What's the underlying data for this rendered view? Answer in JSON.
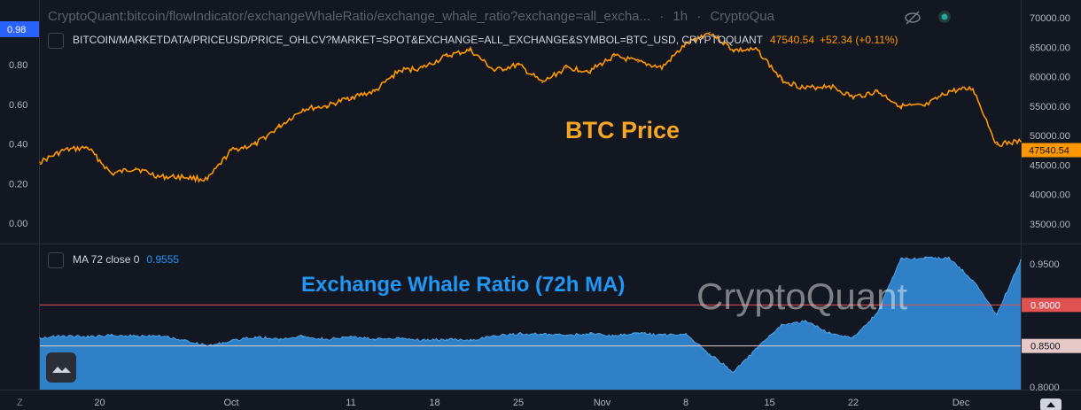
{
  "header": {
    "source_title": "CryptoQuant:bitcoin/flowIndicator/exchangeWhaleRatio/exchange_whale_ratio?exchange=all_excha...",
    "interval": "1h",
    "source_brand": "CryptoQua",
    "eye_icon": "eye-off-icon",
    "dot_icon": "status-dot-icon"
  },
  "price_legend": {
    "symbol": "BITCOIN/MARKETDATA/PRICEUSD/PRICE_OHLCV?MARKET=SPOT&EXCHANGE=ALL_EXCHANGE&SYMBOL=BTC_USD, CRYPTOQUANT",
    "last": "47540.54",
    "change": "+52.34 (+0.11%)"
  },
  "whale_legend": {
    "study": "MA 72 close 0",
    "value": "0.9555"
  },
  "annotations": {
    "price": "BTC Price",
    "whale": "Exchange Whale Ratio (72h MA)",
    "watermark": "CryptoQuant"
  },
  "colors": {
    "background": "#131722",
    "price_line": "#ff9800",
    "whale_fill": "#2f80c6",
    "price_label": "#f5a623",
    "whale_label": "#2196f3",
    "level_090": "#e05252",
    "level_085": "#e8c9c9"
  },
  "chart_data": [
    {
      "type": "line",
      "series": [
        {
          "name": "BITCOIN/MARKETDATA/PRICEUSD/PRICE_OHLCV?MARKET=SPOT&EXCHANGE=ALL_EXCHANGE&SYMBOL=BTC_USD, CRYPTOQUANT",
          "x": [
            "2021-09-15",
            "2021-09-17",
            "2021-09-19",
            "2021-09-21",
            "2021-09-23",
            "2021-09-25",
            "2021-09-27",
            "2021-09-29",
            "2021-10-01",
            "2021-10-03",
            "2021-10-05",
            "2021-10-07",
            "2021-10-09",
            "2021-10-11",
            "2021-10-13",
            "2021-10-15",
            "2021-10-17",
            "2021-10-19",
            "2021-10-21",
            "2021-10-23",
            "2021-10-25",
            "2021-10-27",
            "2021-10-29",
            "2021-10-31",
            "2021-11-02",
            "2021-11-04",
            "2021-11-06",
            "2021-11-08",
            "2021-11-10",
            "2021-11-12",
            "2021-11-14",
            "2021-11-16",
            "2021-11-18",
            "2021-11-20",
            "2021-11-22",
            "2021-11-24",
            "2021-11-26",
            "2021-11-28",
            "2021-11-30",
            "2021-12-02",
            "2021-12-04",
            "2021-12-06"
          ],
          "values": [
            45500,
            47500,
            48000,
            43500,
            44500,
            43000,
            43000,
            42500,
            47500,
            48500,
            51500,
            54500,
            55000,
            56500,
            57500,
            61000,
            61500,
            63500,
            64500,
            61000,
            62000,
            59000,
            61500,
            61000,
            63500,
            62500,
            61500,
            65500,
            67500,
            64500,
            64500,
            59500,
            58000,
            58500,
            56500,
            57500,
            55000,
            55000,
            57500,
            58000,
            48500,
            49000
          ]
        }
      ],
      "annotation": "BTC Price",
      "ylim": [
        30000,
        72000
      ],
      "yticks": [
        "35000.00",
        "40000.00",
        "45000.00",
        "50000.00",
        "55000.00",
        "60000.00",
        "65000.00",
        "70000.00"
      ],
      "left_ticks": [
        "0.00",
        "0.20",
        "0.40",
        "0.60",
        "0.80",
        "0.98"
      ],
      "last_value_label": "47540.54",
      "grid": false
    },
    {
      "type": "area",
      "series": [
        {
          "name": "MA 72 close 0",
          "x": [
            "2021-09-15",
            "2021-09-17",
            "2021-09-19",
            "2021-09-21",
            "2021-09-23",
            "2021-09-25",
            "2021-09-27",
            "2021-09-29",
            "2021-10-01",
            "2021-10-03",
            "2021-10-05",
            "2021-10-07",
            "2021-10-09",
            "2021-10-11",
            "2021-10-13",
            "2021-10-15",
            "2021-10-17",
            "2021-10-19",
            "2021-10-21",
            "2021-10-23",
            "2021-10-25",
            "2021-10-27",
            "2021-10-29",
            "2021-10-31",
            "2021-11-02",
            "2021-11-04",
            "2021-11-06",
            "2021-11-08",
            "2021-11-10",
            "2021-11-12",
            "2021-11-14",
            "2021-11-16",
            "2021-11-18",
            "2021-11-20",
            "2021-11-22",
            "2021-11-24",
            "2021-11-26",
            "2021-11-28",
            "2021-11-30",
            "2021-12-02",
            "2021-12-04",
            "2021-12-06"
          ],
          "values": [
            0.86,
            0.862,
            0.861,
            0.863,
            0.862,
            0.863,
            0.857,
            0.85,
            0.856,
            0.861,
            0.858,
            0.862,
            0.858,
            0.861,
            0.858,
            0.86,
            0.857,
            0.858,
            0.857,
            0.862,
            0.865,
            0.864,
            0.863,
            0.865,
            0.862,
            0.866,
            0.863,
            0.865,
            0.84,
            0.818,
            0.848,
            0.875,
            0.88,
            0.866,
            0.86,
            0.89,
            0.956,
            0.957,
            0.957,
            0.93,
            0.888,
            0.955
          ]
        }
      ],
      "annotation": "Exchange Whale Ratio (72h MA)",
      "ylim": [
        0.795,
        0.963
      ],
      "yticks": [
        "0.8000",
        "0.8500",
        "0.9000",
        "0.9500"
      ],
      "levels": [
        {
          "value": 0.9,
          "label": "0.9000"
        },
        {
          "value": 0.85,
          "label": "0.8500"
        }
      ],
      "grid": false
    }
  ],
  "x_axis": {
    "ticks": [
      {
        "date": "2021-09-20",
        "label": "20"
      },
      {
        "date": "2021-10-01",
        "label": "Oct"
      },
      {
        "date": "2021-10-11",
        "label": "11"
      },
      {
        "date": "2021-10-18",
        "label": "18"
      },
      {
        "date": "2021-10-25",
        "label": "25"
      },
      {
        "date": "2021-11-01",
        "label": "Nov"
      },
      {
        "date": "2021-11-08",
        "label": "8"
      },
      {
        "date": "2021-11-15",
        "label": "15"
      },
      {
        "date": "2021-11-22",
        "label": "22"
      },
      {
        "date": "2021-12-01",
        "label": "Dec"
      }
    ],
    "corner_left": "Z"
  }
}
